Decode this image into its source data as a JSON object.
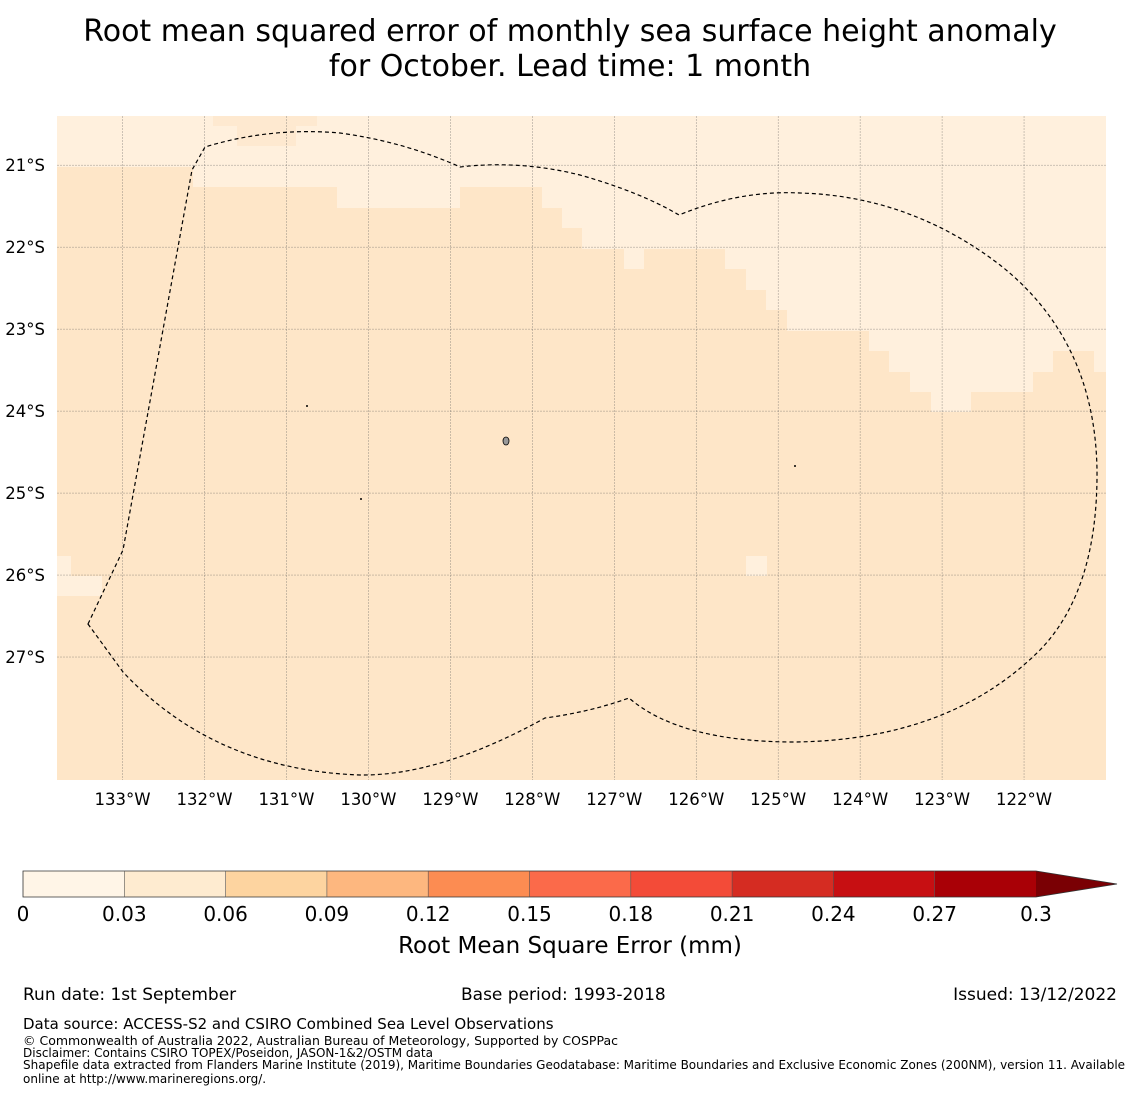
{
  "title": {
    "line1": "Root mean squared error of monthly sea surface height anomaly",
    "line2": "for October. Lead time: 1 month"
  },
  "map": {
    "lat_labels": [
      "21°S",
      "22°S",
      "23°S",
      "24°S",
      "25°S",
      "26°S",
      "27°S"
    ],
    "lon_labels": [
      "133°W",
      "132°W",
      "131°W",
      "130°W",
      "129°W",
      "128°W",
      "127°W",
      "126°W",
      "125°W",
      "124°W",
      "123°W",
      "122°W"
    ],
    "lat_values": [
      -21,
      -22,
      -23,
      -24,
      -25,
      -26,
      -27
    ],
    "lon_values": [
      -133,
      -132,
      -131,
      -130,
      -129,
      -128,
      -127,
      -126,
      -125,
      -124,
      -123,
      -122
    ],
    "extent": {
      "lon": [
        -133.8,
        -121.0
      ],
      "lat": [
        -28.5,
        -20.4
      ]
    },
    "fill_colors": {
      "low": "#fff0dd",
      "mid": "#fee6c8"
    },
    "boundary_style": "dashed"
  },
  "colorbar": {
    "tick_labels": [
      "0",
      "0.03",
      "0.06",
      "0.09",
      "0.12",
      "0.15",
      "0.18",
      "0.21",
      "0.24",
      "0.27",
      "0.3"
    ],
    "colors": [
      "#fff5e7",
      "#feebd0",
      "#fdd4a0",
      "#fdb77f",
      "#fc8c52",
      "#fb6a4a",
      "#f34b38",
      "#d52c22",
      "#c70f12",
      "#a90006",
      "#7a0004"
    ],
    "extend": "max",
    "label": "Root Mean Square Error (mm)"
  },
  "footer": {
    "run_date": "Run date: 1st September",
    "base_period": "Base period: 1993-2018",
    "issued": "Issued: 13/12/2022",
    "data_source": "Data source: ACCESS-S2 and CSIRO Combined Sea Level Observations",
    "copyright": "© Commonwealth of Australia 2022, Australian Bureau of Meteorology, Supported by COSPPac",
    "disclaimer": "Disclaimer: Contains CSIRO TOPEX/Poseidon, JASON-1&2/OSTM data",
    "shapefile": "Shapefile data extracted from Flanders Marine Institute (2019), Maritime Boundaries Geodatabase: Maritime Boundaries and Exclusive Economic Zones (200NM), version 11. Available online at http://www.marineregions.org/."
  }
}
